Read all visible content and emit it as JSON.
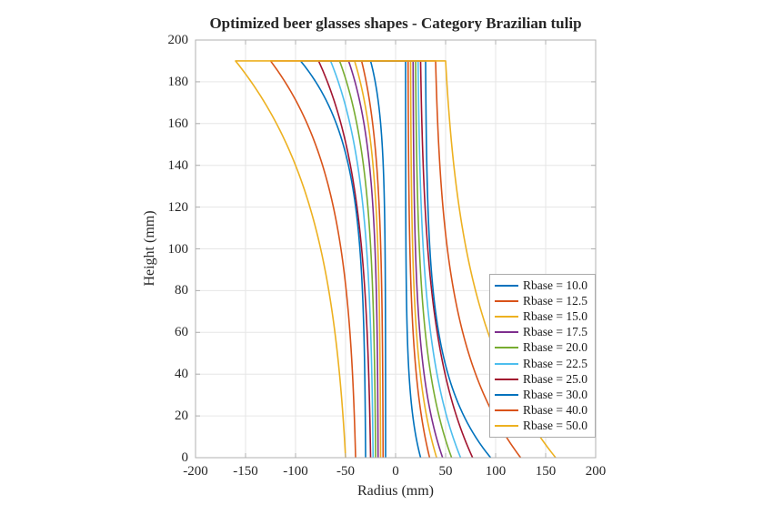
{
  "chart_data": {
    "type": "line",
    "title": "Optimized beer glasses shapes - Category Brazilian tulip",
    "xlabel": "Radius (mm)",
    "ylabel": "Height (mm)",
    "xlim": [
      -200,
      200
    ],
    "ylim": [
      0,
      200
    ],
    "xticks": [
      -200,
      -150,
      -100,
      -50,
      0,
      50,
      100,
      150,
      200
    ],
    "xtick_labels": [
      "-200",
      "-150",
      "-100",
      "-50",
      "0",
      "50",
      "100",
      "150",
      "200"
    ],
    "yticks": [
      0,
      20,
      40,
      60,
      80,
      100,
      120,
      140,
      160,
      180,
      200
    ],
    "ytick_labels": [
      "0",
      "20",
      "40",
      "60",
      "80",
      "100",
      "120",
      "140",
      "160",
      "180",
      "200"
    ],
    "grid": true,
    "box": true,
    "legend_position": "inside lower right",
    "rim_height_mm": 190,
    "mirrored_profiles": true,
    "series": [
      {
        "label": "Rbase = 10.0",
        "color": "#0072BD",
        "rbase_mm": 10.0,
        "rtop_mm": 25,
        "flare_exp": 7.0
      },
      {
        "label": "Rbase = 12.5",
        "color": "#D95319",
        "rbase_mm": 12.5,
        "rtop_mm": 34,
        "flare_exp": 4.5
      },
      {
        "label": "Rbase = 15.0",
        "color": "#EDB120",
        "rbase_mm": 15.0,
        "rtop_mm": 41,
        "flare_exp": 4.6
      },
      {
        "label": "Rbase = 17.5",
        "color": "#7E2F8E",
        "rbase_mm": 17.5,
        "rtop_mm": 47,
        "flare_exp": 4.6
      },
      {
        "label": "Rbase = 20.0",
        "color": "#77AC30",
        "rbase_mm": 20.0,
        "rtop_mm": 56,
        "flare_exp": 4.0
      },
      {
        "label": "Rbase = 22.5",
        "color": "#4DBEEE",
        "rbase_mm": 22.5,
        "rtop_mm": 65,
        "flare_exp": 3.7
      },
      {
        "label": "Rbase = 25.0",
        "color": "#A2142F",
        "rbase_mm": 25.0,
        "rtop_mm": 77,
        "flare_exp": 3.4
      },
      {
        "label": "Rbase = 30.0",
        "color": "#0072BD",
        "rbase_mm": 30.0,
        "rtop_mm": 95,
        "flare_exp": 5.0
      },
      {
        "label": "Rbase = 40.0",
        "color": "#D95319",
        "rbase_mm": 40.0,
        "rtop_mm": 125,
        "flare_exp": 3.4
      },
      {
        "label": "Rbase = 50.0",
        "color": "#EDB120",
        "rbase_mm": 50.0,
        "rtop_mm": 160,
        "flare_exp": 2.7
      }
    ],
    "colors": {
      "grid": "#e6e6e6",
      "axis_box": "#b0b0b0",
      "text": "#262626",
      "background": "#ffffff"
    }
  }
}
